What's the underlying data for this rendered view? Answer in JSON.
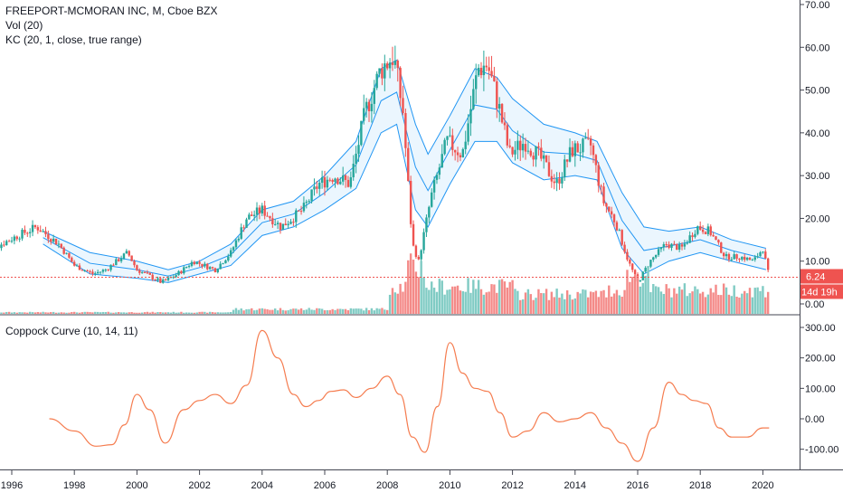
{
  "chart_data": [
    {
      "type": "candlestick",
      "title": "FREEPORT-MCMORAN INC, M, Cboe BZX",
      "indicators": [
        "Vol (20)",
        "KC (20, 1, close, true range)"
      ],
      "ylim": [
        0,
        70
      ],
      "yticks": [
        "70.00",
        "60.00",
        "50.00",
        "40.00",
        "30.00",
        "20.00",
        "10.00",
        "0.00"
      ],
      "last_price_label": "6.24",
      "countdown_label": "14d 19h",
      "colors": {
        "up": "#26a69a",
        "down": "#ef5350",
        "kc_band": "#2196f3",
        "kc_fill": "#e3f2fd",
        "last_line": "#ef5350",
        "vol_up": "#80cbc4",
        "vol_down": "#f48a88"
      },
      "close_series": [
        {
          "t": 1995.0,
          "v": 11.5
        },
        {
          "t": 1996.2,
          "v": 16
        },
        {
          "t": 1996.8,
          "v": 18
        },
        {
          "t": 1997.5,
          "v": 14
        },
        {
          "t": 1998.0,
          "v": 9
        },
        {
          "t": 1998.6,
          "v": 7
        },
        {
          "t": 1999.0,
          "v": 8
        },
        {
          "t": 1999.7,
          "v": 12
        },
        {
          "t": 2000.0,
          "v": 8
        },
        {
          "t": 2000.8,
          "v": 5
        },
        {
          "t": 2001.3,
          "v": 7
        },
        {
          "t": 2001.8,
          "v": 10
        },
        {
          "t": 2002.5,
          "v": 8
        },
        {
          "t": 2003.0,
          "v": 12
        },
        {
          "t": 2003.5,
          "v": 20
        },
        {
          "t": 2004.0,
          "v": 22
        },
        {
          "t": 2004.6,
          "v": 18
        },
        {
          "t": 2005.3,
          "v": 22
        },
        {
          "t": 2005.8,
          "v": 28
        },
        {
          "t": 2006.3,
          "v": 30
        },
        {
          "t": 2006.8,
          "v": 28
        },
        {
          "t": 2007.3,
          "v": 45
        },
        {
          "t": 2007.8,
          "v": 55
        },
        {
          "t": 2008.2,
          "v": 58
        },
        {
          "t": 2008.5,
          "v": 45
        },
        {
          "t": 2008.8,
          "v": 14
        },
        {
          "t": 2009.0,
          "v": 10
        },
        {
          "t": 2009.4,
          "v": 25
        },
        {
          "t": 2009.9,
          "v": 38
        },
        {
          "t": 2010.4,
          "v": 35
        },
        {
          "t": 2010.9,
          "v": 55
        },
        {
          "t": 2011.2,
          "v": 56
        },
        {
          "t": 2011.6,
          "v": 45
        },
        {
          "t": 2011.9,
          "v": 35
        },
        {
          "t": 2012.4,
          "v": 38
        },
        {
          "t": 2012.9,
          "v": 34
        },
        {
          "t": 2013.4,
          "v": 28
        },
        {
          "t": 2013.9,
          "v": 36
        },
        {
          "t": 2014.5,
          "v": 37
        },
        {
          "t": 2014.9,
          "v": 24
        },
        {
          "t": 2015.3,
          "v": 19
        },
        {
          "t": 2015.7,
          "v": 10
        },
        {
          "t": 2016.0,
          "v": 5
        },
        {
          "t": 2016.4,
          "v": 10
        },
        {
          "t": 2016.9,
          "v": 14
        },
        {
          "t": 2017.4,
          "v": 13
        },
        {
          "t": 2017.9,
          "v": 18
        },
        {
          "t": 2018.3,
          "v": 17
        },
        {
          "t": 2018.8,
          "v": 11
        },
        {
          "t": 2019.3,
          "v": 11
        },
        {
          "t": 2019.7,
          "v": 10
        },
        {
          "t": 2020.0,
          "v": 13
        },
        {
          "t": 2020.2,
          "v": 6.24
        }
      ],
      "keltner_channel": [
        {
          "t": 1997.0,
          "upper": 17,
          "lower": 14
        },
        {
          "t": 1998.5,
          "upper": 12,
          "lower": 7
        },
        {
          "t": 2000.0,
          "upper": 10,
          "lower": 6
        },
        {
          "t": 2001.0,
          "upper": 8,
          "lower": 5
        },
        {
          "t": 2002.0,
          "upper": 10,
          "lower": 7
        },
        {
          "t": 2003.0,
          "upper": 14,
          "lower": 9
        },
        {
          "t": 2004.0,
          "upper": 22,
          "lower": 16
        },
        {
          "t": 2005.0,
          "upper": 24,
          "lower": 18
        },
        {
          "t": 2006.0,
          "upper": 30,
          "lower": 22
        },
        {
          "t": 2007.0,
          "upper": 38,
          "lower": 27
        },
        {
          "t": 2007.8,
          "upper": 55,
          "lower": 40
        },
        {
          "t": 2008.3,
          "upper": 57,
          "lower": 42
        },
        {
          "t": 2008.9,
          "upper": 42,
          "lower": 22
        },
        {
          "t": 2009.3,
          "upper": 35,
          "lower": 18
        },
        {
          "t": 2010.0,
          "upper": 44,
          "lower": 28
        },
        {
          "t": 2010.8,
          "upper": 55,
          "lower": 38
        },
        {
          "t": 2011.5,
          "upper": 53,
          "lower": 38
        },
        {
          "t": 2012.0,
          "upper": 48,
          "lower": 33
        },
        {
          "t": 2013.0,
          "upper": 42,
          "lower": 29
        },
        {
          "t": 2014.0,
          "upper": 40,
          "lower": 30
        },
        {
          "t": 2014.7,
          "upper": 38,
          "lower": 29
        },
        {
          "t": 2015.5,
          "upper": 26,
          "lower": 13
        },
        {
          "t": 2016.2,
          "upper": 18,
          "lower": 7
        },
        {
          "t": 2017.0,
          "upper": 17,
          "lower": 10
        },
        {
          "t": 2018.0,
          "upper": 18,
          "lower": 12
        },
        {
          "t": 2019.0,
          "upper": 15,
          "lower": 10
        },
        {
          "t": 2020.1,
          "upper": 13,
          "lower": 8
        }
      ]
    },
    {
      "type": "line",
      "title": "Coppock Curve (10, 14, 11)",
      "ylim": [
        -135,
        320
      ],
      "yticks": [
        "300.00",
        "200.00",
        "100.00",
        "0.00",
        "-100.00"
      ],
      "color": "#f57c4f",
      "x": [
        1997.2,
        1998.0,
        1998.7,
        1999.2,
        1999.6,
        2000.0,
        2000.4,
        2000.9,
        2001.5,
        2002.0,
        2002.5,
        2003.0,
        2003.5,
        2004.0,
        2004.5,
        2005.0,
        2005.4,
        2005.8,
        2006.2,
        2006.6,
        2007.0,
        2007.5,
        2008.0,
        2008.4,
        2008.8,
        2009.2,
        2009.6,
        2010.0,
        2010.4,
        2010.8,
        2011.2,
        2011.6,
        2012.0,
        2012.5,
        2013.0,
        2013.5,
        2014.0,
        2014.5,
        2015.0,
        2015.5,
        2016.0,
        2016.5,
        2017.0,
        2017.4,
        2017.8,
        2018.2,
        2018.6,
        2019.0,
        2019.5,
        2020.0,
        2020.2
      ],
      "y": [
        0,
        -40,
        -90,
        -85,
        -20,
        80,
        30,
        -80,
        30,
        60,
        80,
        50,
        110,
        290,
        200,
        80,
        40,
        60,
        90,
        95,
        70,
        100,
        140,
        80,
        -60,
        -110,
        40,
        250,
        150,
        100,
        90,
        20,
        -60,
        -40,
        20,
        -10,
        0,
        20,
        -30,
        -80,
        -140,
        -30,
        120,
        80,
        60,
        50,
        -30,
        -60,
        -60,
        -30,
        -30
      ]
    }
  ],
  "x_axis": {
    "ticks": [
      "1996",
      "1998",
      "2000",
      "2002",
      "2004",
      "2006",
      "2008",
      "2010",
      "2012",
      "2014",
      "2016",
      "2018",
      "2020"
    ]
  }
}
